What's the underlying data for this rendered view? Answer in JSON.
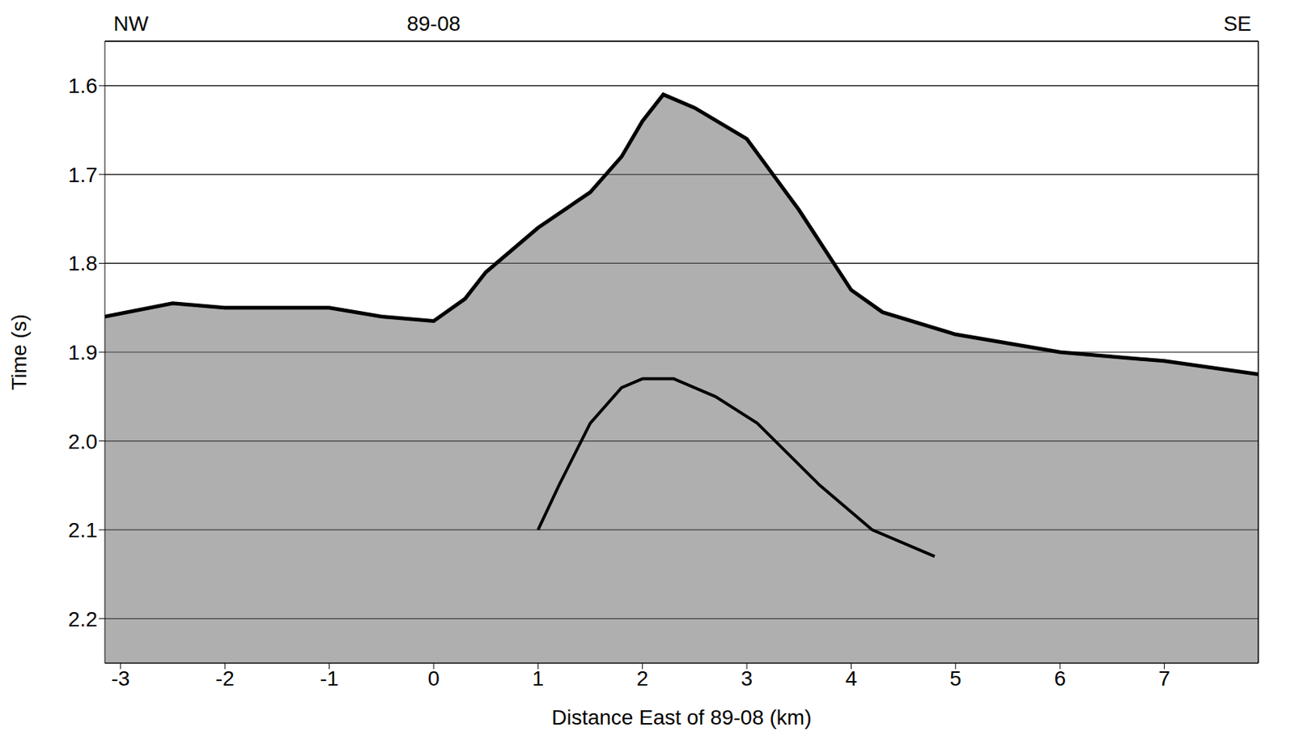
{
  "chart_data": {
    "type": "line",
    "x_label": "Distance East of 89-08 (km)",
    "y_label": "Time (s)",
    "annotations": [
      {
        "text": "NW",
        "x": -2.9
      },
      {
        "text": "89-08",
        "x": 0
      },
      {
        "text": "SE",
        "x": 7.7
      }
    ],
    "xlim": [
      -3.15,
      7.9
    ],
    "ylim": [
      1.55,
      2.25
    ],
    "xticks": [
      -3,
      -2,
      -1,
      0,
      1,
      2,
      3,
      4,
      5,
      6,
      7
    ],
    "yticks": [
      1.6,
      1.7,
      1.8,
      1.9,
      {
        "value": 2,
        "label": "2.0"
      },
      2.1,
      2.2
    ],
    "grid": true,
    "series": [
      {
        "type": "area",
        "color": "#000000",
        "x": [
          -3.15,
          -2.5,
          -2,
          -1,
          -0.5,
          0,
          0.3,
          0.5,
          1,
          1.5,
          1.8,
          2,
          2.2,
          2.5,
          3,
          3.5,
          4,
          4.3,
          5,
          6,
          7,
          7.9
        ],
        "values": [
          1.86,
          1.845,
          1.85,
          1.85,
          1.86,
          1.865,
          1.84,
          1.81,
          1.76,
          1.72,
          1.68,
          1.64,
          1.61,
          1.625,
          1.66,
          1.74,
          1.83,
          1.855,
          1.88,
          1.9,
          1.91,
          1.925
        ]
      },
      {
        "type": "line",
        "color": "#000000",
        "x": [
          1,
          1.2,
          1.5,
          1.8,
          2,
          2.3,
          2.7,
          3.1,
          3.7,
          4.2,
          4.8
        ],
        "values": [
          2.1,
          2.05,
          1.98,
          1.94,
          1.93,
          1.93,
          1.95,
          1.98,
          2.05,
          2.1,
          2.13
        ]
      }
    ]
  }
}
